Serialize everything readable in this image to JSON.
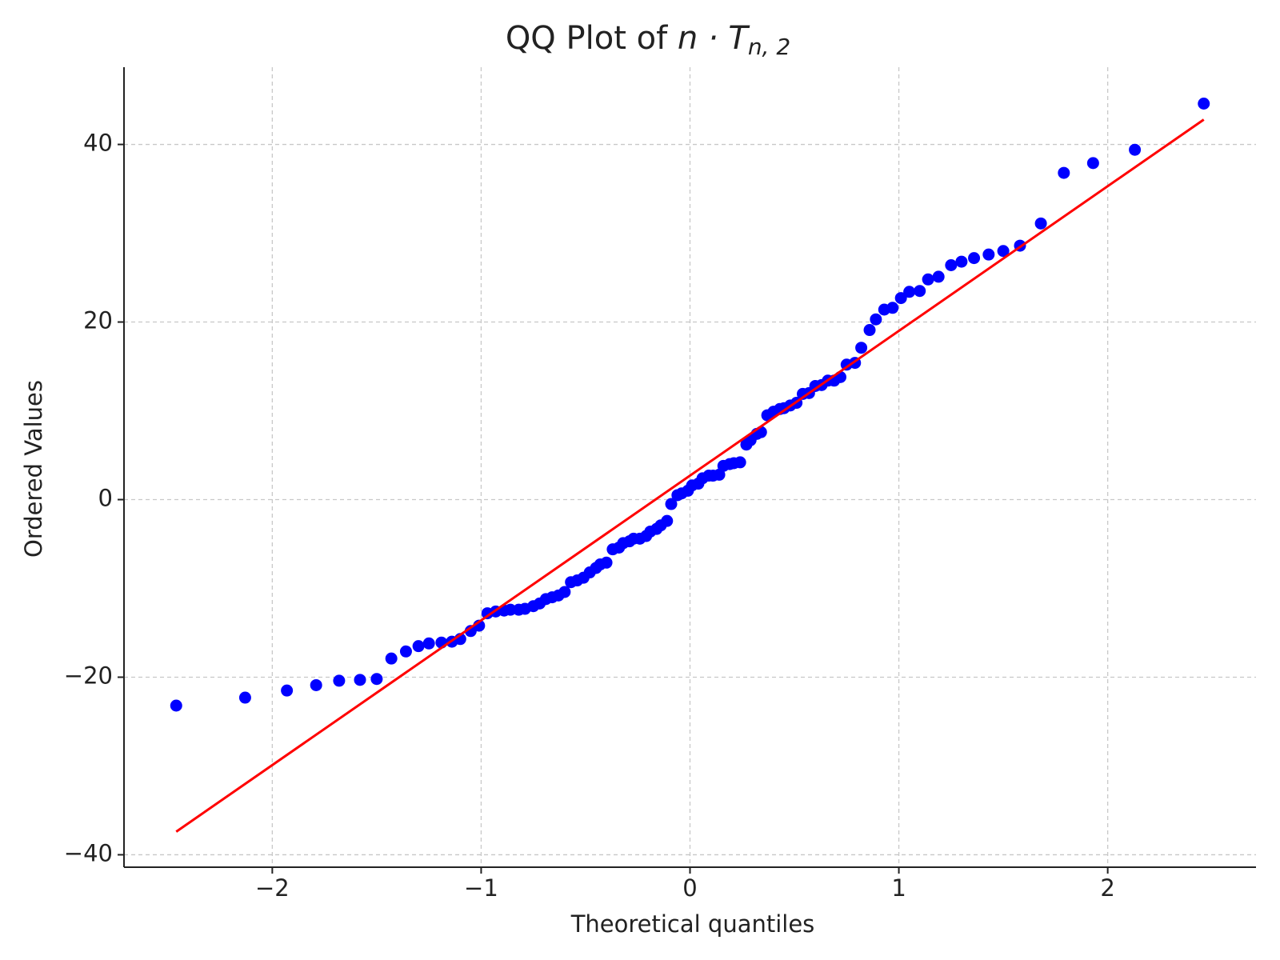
{
  "chart_data": {
    "type": "scatter",
    "title": {
      "text": "QQ Plot of ",
      "math": "n · T",
      "subscript": "n, 2"
    },
    "x_label": "Theoretical quantiles",
    "y_label": "Ordered Values",
    "x": [
      -2.46,
      -2.13,
      -1.93,
      -1.79,
      -1.68,
      -1.58,
      -1.5,
      -1.43,
      -1.36,
      -1.3,
      -1.25,
      -1.19,
      -1.14,
      -1.1,
      -1.05,
      -1.01,
      -0.97,
      -0.93,
      -0.89,
      -0.86,
      -0.82,
      -0.79,
      -0.75,
      -0.72,
      -0.69,
      -0.66,
      -0.63,
      -0.6,
      -0.57,
      -0.54,
      -0.51,
      -0.48,
      -0.45,
      -0.43,
      -0.4,
      -0.37,
      -0.34,
      -0.32,
      -0.29,
      -0.27,
      -0.24,
      -0.21,
      -0.19,
      -0.16,
      -0.14,
      -0.11,
      -0.09,
      -0.06,
      -0.04,
      -0.01,
      0.01,
      0.04,
      0.06,
      0.09,
      0.11,
      0.14,
      0.16,
      0.19,
      0.21,
      0.24,
      0.27,
      0.29,
      0.32,
      0.34,
      0.37,
      0.4,
      0.43,
      0.45,
      0.48,
      0.51,
      0.54,
      0.57,
      0.6,
      0.63,
      0.66,
      0.69,
      0.72,
      0.75,
      0.79,
      0.82,
      0.86,
      0.89,
      0.93,
      0.97,
      1.01,
      1.05,
      1.1,
      1.14,
      1.19,
      1.25,
      1.3,
      1.36,
      1.43,
      1.5,
      1.58,
      1.68,
      1.79,
      1.93,
      2.13,
      2.46
    ],
    "series": [
      {
        "color": "#0000ff",
        "values": [
          -23.2,
          -22.3,
          -21.5,
          -20.9,
          -20.4,
          -20.3,
          -20.2,
          -17.9,
          -17.1,
          -16.5,
          -16.2,
          -16.1,
          -16.0,
          -15.7,
          -14.8,
          -14.2,
          -12.8,
          -12.6,
          -12.5,
          -12.4,
          -12.4,
          -12.3,
          -12.0,
          -11.7,
          -11.2,
          -11.0,
          -10.8,
          -10.4,
          -9.3,
          -9.1,
          -8.8,
          -8.2,
          -7.7,
          -7.3,
          -7.1,
          -5.6,
          -5.4,
          -4.9,
          -4.7,
          -4.4,
          -4.4,
          -4.1,
          -3.6,
          -3.3,
          -2.9,
          -2.4,
          -0.5,
          0.5,
          0.7,
          1.0,
          1.6,
          1.8,
          2.4,
          2.7,
          2.7,
          2.8,
          3.8,
          4.0,
          4.1,
          4.2,
          6.2,
          6.7,
          7.4,
          7.6,
          9.5,
          9.9,
          10.2,
          10.3,
          10.6,
          10.9,
          11.9,
          12.0,
          12.8,
          12.9,
          13.4,
          13.4,
          13.8,
          15.2,
          15.4,
          17.1,
          19.1,
          20.3,
          21.4,
          21.6,
          22.7,
          23.4,
          23.5,
          24.8,
          25.1,
          26.4,
          26.8,
          27.2,
          27.6,
          28.0,
          28.6,
          31.1,
          36.8,
          37.9,
          39.4,
          44.6
        ]
      }
    ],
    "fit_line": {
      "slope": 16.3,
      "intercept": 2.7,
      "color": "#ff0000"
    },
    "xlim": [
      -2.71,
      2.71
    ],
    "ylim": [
      -41.4,
      48.7
    ],
    "xticks": [
      {
        "value": -2,
        "label": "−2"
      },
      {
        "value": -1,
        "label": "−1"
      },
      0,
      1,
      2
    ],
    "yticks": [
      {
        "value": -40,
        "label": "−40"
      },
      {
        "value": -20,
        "label": "−20"
      },
      0,
      20,
      40
    ],
    "grid": true
  }
}
